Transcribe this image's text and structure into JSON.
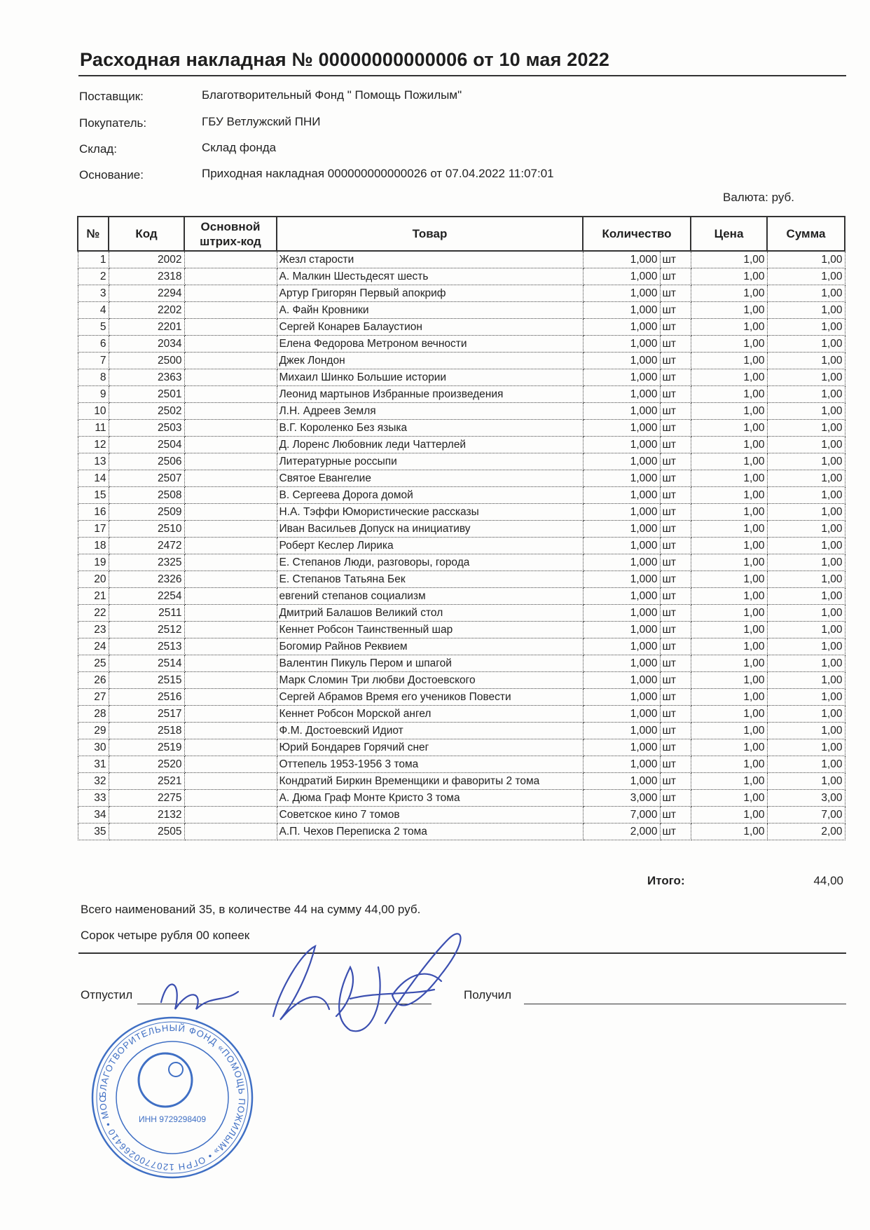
{
  "title": "Расходная накладная № 00000000000006 от 10 мая 2022",
  "fields": [
    {
      "label": "Поставщик:",
      "value": "Благотворительный Фонд \" Помощь Пожилым\""
    },
    {
      "label": "Покупатель:",
      "value": "ГБУ Ветлужский ПНИ"
    },
    {
      "label": "Склад:",
      "value": "Склад фонда"
    },
    {
      "label": "Основание:",
      "value": "Приходная накладная 000000000000026 от 07.04.2022 11:07:01"
    }
  ],
  "currency": "Валюта:  руб.",
  "table": {
    "headers": {
      "num": "№",
      "code": "Код",
      "barcode": "Основной штрих-код",
      "item": "Товар",
      "qty": "Количество",
      "price": "Цена",
      "sum": "Сумма"
    },
    "rows": [
      {
        "n": "1",
        "code": "2002",
        "item": "Жезл старости",
        "qty": "1,000",
        "unit": "шт",
        "price": "1,00",
        "sum": "1,00"
      },
      {
        "n": "2",
        "code": "2318",
        "item": "А. Малкин Шестьдесят шесть",
        "qty": "1,000",
        "unit": "шт",
        "price": "1,00",
        "sum": "1,00"
      },
      {
        "n": "3",
        "code": "2294",
        "item": "Артур Григорян Первый апокриф",
        "qty": "1,000",
        "unit": "шт",
        "price": "1,00",
        "sum": "1,00"
      },
      {
        "n": "4",
        "code": "2202",
        "item": "А. Файн Кровники",
        "qty": "1,000",
        "unit": "шт",
        "price": "1,00",
        "sum": "1,00"
      },
      {
        "n": "5",
        "code": "2201",
        "item": "Сергей Конарев Балаустион",
        "qty": "1,000",
        "unit": "шт",
        "price": "1,00",
        "sum": "1,00"
      },
      {
        "n": "6",
        "code": "2034",
        "item": "Елена Федорова Метроном вечности",
        "qty": "1,000",
        "unit": "шт",
        "price": "1,00",
        "sum": "1,00"
      },
      {
        "n": "7",
        "code": "2500",
        "item": "Джек Лондон",
        "qty": "1,000",
        "unit": "шт",
        "price": "1,00",
        "sum": "1,00"
      },
      {
        "n": "8",
        "code": "2363",
        "item": "Михаил Шинко Большие истории",
        "qty": "1,000",
        "unit": "шт",
        "price": "1,00",
        "sum": "1,00"
      },
      {
        "n": "9",
        "code": "2501",
        "item": "Леонид мартынов Избранные произведения",
        "qty": "1,000",
        "unit": "шт",
        "price": "1,00",
        "sum": "1,00"
      },
      {
        "n": "10",
        "code": "2502",
        "item": "Л.Н. Адреев Земля",
        "qty": "1,000",
        "unit": "шт",
        "price": "1,00",
        "sum": "1,00"
      },
      {
        "n": "11",
        "code": "2503",
        "item": "В.Г. Короленко Без языка",
        "qty": "1,000",
        "unit": "шт",
        "price": "1,00",
        "sum": "1,00"
      },
      {
        "n": "12",
        "code": "2504",
        "item": "Д. Лоренс Любовник леди Чаттерлей",
        "qty": "1,000",
        "unit": "шт",
        "price": "1,00",
        "sum": "1,00"
      },
      {
        "n": "13",
        "code": "2506",
        "item": "Литературные россыпи",
        "qty": "1,000",
        "unit": "шт",
        "price": "1,00",
        "sum": "1,00"
      },
      {
        "n": "14",
        "code": "2507",
        "item": "Святое Евангелие",
        "qty": "1,000",
        "unit": "шт",
        "price": "1,00",
        "sum": "1,00"
      },
      {
        "n": "15",
        "code": "2508",
        "item": "В. Сергеева Дорога домой",
        "qty": "1,000",
        "unit": "шт",
        "price": "1,00",
        "sum": "1,00"
      },
      {
        "n": "16",
        "code": "2509",
        "item": "Н.А. Тэффи Юмористические рассказы",
        "qty": "1,000",
        "unit": "шт",
        "price": "1,00",
        "sum": "1,00"
      },
      {
        "n": "17",
        "code": "2510",
        "item": "Иван Васильев Допуск на инициативу",
        "qty": "1,000",
        "unit": "шт",
        "price": "1,00",
        "sum": "1,00"
      },
      {
        "n": "18",
        "code": "2472",
        "item": "Роберт Кеслер Лирика",
        "qty": "1,000",
        "unit": "шт",
        "price": "1,00",
        "sum": "1,00"
      },
      {
        "n": "19",
        "code": "2325",
        "item": "Е. Степанов Люди, разговоры, города",
        "qty": "1,000",
        "unit": "шт",
        "price": "1,00",
        "sum": "1,00"
      },
      {
        "n": "20",
        "code": "2326",
        "item": "Е. Степанов Татьяна Бек",
        "qty": "1,000",
        "unit": "шт",
        "price": "1,00",
        "sum": "1,00"
      },
      {
        "n": "21",
        "code": "2254",
        "item": "евгений степанов социализм",
        "qty": "1,000",
        "unit": "шт",
        "price": "1,00",
        "sum": "1,00"
      },
      {
        "n": "22",
        "code": "2511",
        "item": "Дмитрий Балашов Великий стол",
        "qty": "1,000",
        "unit": "шт",
        "price": "1,00",
        "sum": "1,00"
      },
      {
        "n": "23",
        "code": "2512",
        "item": "Кеннет Робсон Таинственный шар",
        "qty": "1,000",
        "unit": "шт",
        "price": "1,00",
        "sum": "1,00"
      },
      {
        "n": "24",
        "code": "2513",
        "item": "Богомир Райнов Реквием",
        "qty": "1,000",
        "unit": "шт",
        "price": "1,00",
        "sum": "1,00"
      },
      {
        "n": "25",
        "code": "2514",
        "item": "Валентин Пикуль Пером и шпагой",
        "qty": "1,000",
        "unit": "шт",
        "price": "1,00",
        "sum": "1,00"
      },
      {
        "n": "26",
        "code": "2515",
        "item": "Марк Сломин Три любви Достоевского",
        "qty": "1,000",
        "unit": "шт",
        "price": "1,00",
        "sum": "1,00"
      },
      {
        "n": "27",
        "code": "2516",
        "item": "Сергей Абрамов Время его учеников Повести",
        "qty": "1,000",
        "unit": "шт",
        "price": "1,00",
        "sum": "1,00"
      },
      {
        "n": "28",
        "code": "2517",
        "item": "Кеннет Робсон Морской ангел",
        "qty": "1,000",
        "unit": "шт",
        "price": "1,00",
        "sum": "1,00"
      },
      {
        "n": "29",
        "code": "2518",
        "item": "Ф.М. Достоевский Идиот",
        "qty": "1,000",
        "unit": "шт",
        "price": "1,00",
        "sum": "1,00"
      },
      {
        "n": "30",
        "code": "2519",
        "item": "Юрий Бондарев Горячий снег",
        "qty": "1,000",
        "unit": "шт",
        "price": "1,00",
        "sum": "1,00"
      },
      {
        "n": "31",
        "code": "2520",
        "item": "Оттепель 1953-1956 3 тома",
        "qty": "1,000",
        "unit": "шт",
        "price": "1,00",
        "sum": "1,00"
      },
      {
        "n": "32",
        "code": "2521",
        "item": "Кондратий Биркин Временщики и фавориты 2 тома",
        "qty": "1,000",
        "unit": "шт",
        "price": "1,00",
        "sum": "1,00"
      },
      {
        "n": "33",
        "code": "2275",
        "item": "А. Дюма Граф Монте Кристо 3 тома",
        "qty": "3,000",
        "unit": "шт",
        "price": "1,00",
        "sum": "3,00"
      },
      {
        "n": "34",
        "code": "2132",
        "item": "Советское кино 7 томов",
        "qty": "7,000",
        "unit": "шт",
        "price": "1,00",
        "sum": "7,00"
      },
      {
        "n": "35",
        "code": "2505",
        "item": "А.П. Чехов Переписка 2 тома",
        "qty": "2,000",
        "unit": "шт",
        "price": "1,00",
        "sum": "2,00"
      }
    ]
  },
  "total": {
    "label": "Итого:",
    "value": "44,00"
  },
  "summary": "Всего наименований 35, в количестве 44 на сумму 44,00 руб.",
  "amount_in_words": "Сорок четыре рубля 00 копеек",
  "signatures": {
    "released": "Отпустил",
    "received": "Получил"
  },
  "stamp": {
    "outer_text": "БЛАГОТВОРИТЕЛЬНЫЙ ФОНД «ПОМОЩЬ ПОЖИЛЫМ» • ОГРН 1207700266410 • МОСКВА •",
    "inn": "ИНН 9729298409",
    "color": "#3f6fc4"
  },
  "ink_color": "#3b4fb0"
}
